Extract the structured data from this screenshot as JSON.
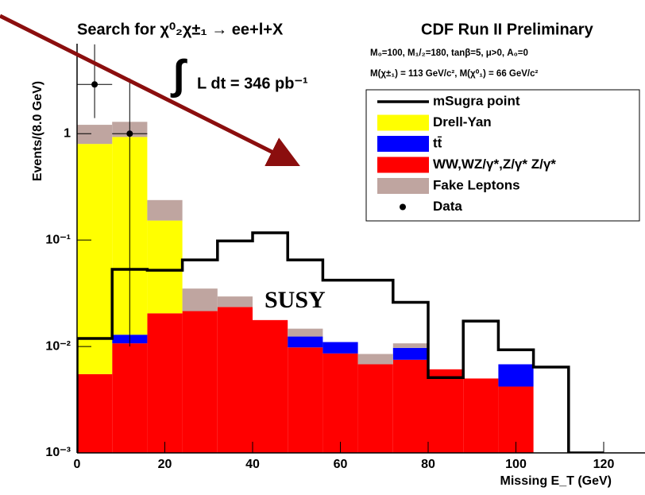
{
  "chart_data": {
    "type": "stacked_histogram",
    "title": "Search for χ⁰₂χ±₁ → ee+l+X",
    "experiment": "CDF Run II Preliminary",
    "parameters": [
      "M₀=100, M₁/₂=180, tanβ=5, μ>0, A₀=0",
      "M(χ±₁) = 113 GeV/c², M(χ⁰₁) = 66 GeV/c²"
    ],
    "lumi_symbol": "∫",
    "lumi": "L dt = 346 pb⁻¹",
    "annotation": "SUSY",
    "x_label": "Missing E_T (GeV)",
    "y_label": "Events/(8.0 GeV)",
    "bins": [
      0,
      8,
      16,
      24,
      32,
      40,
      48,
      56,
      64,
      72,
      80,
      88,
      96,
      104,
      112,
      120
    ],
    "series": [
      {
        "name": "Drell-Yan",
        "color": "#ffff00",
        "values": [
          0.795,
          0.918,
          0.132,
          0,
          0,
          0,
          0,
          0,
          0,
          0,
          0,
          0,
          0,
          0,
          0
        ]
      },
      {
        "name": "tt̄",
        "color": "#0000ff",
        "values": [
          0,
          0.0022,
          0,
          0,
          0,
          0,
          0.0026,
          0.0024,
          0,
          0.0022,
          0,
          0,
          0.0026,
          0,
          0
        ]
      },
      {
        "name": "WW,WZ/γ*,Z/γ* Z/γ*",
        "color": "#ff0000",
        "values": [
          0.0045,
          0.0097,
          0.0195,
          0.0205,
          0.0225,
          0.0167,
          0.0088,
          0.0076,
          0.0058,
          0.0065,
          0.0051,
          0.004,
          0.0032,
          0,
          0
        ]
      },
      {
        "name": "Fake Leptons",
        "color": "#bfa5a0",
        "values": [
          0.41,
          0.36,
          0.085,
          0.0135,
          0.006,
          0,
          0.0023,
          0,
          0.0017,
          0.001,
          0,
          0,
          0,
          0,
          0
        ]
      }
    ],
    "signal": {
      "name": "mSugra point",
      "color": "#000000",
      "values": [
        0.0119,
        0.053,
        0.052,
        0.065,
        0.098,
        0.117,
        0.065,
        0.042,
        0.042,
        0.026,
        0.0051,
        0.0173,
        0.0093,
        0.0064,
        0.001
      ]
    },
    "data": {
      "name": "Data",
      "color": "#000000",
      "x": [
        4,
        12
      ],
      "values": [
        2.9,
        1.0
      ],
      "xerr": [
        4,
        4
      ],
      "yerr_low": [
        1.5,
        0.99
      ],
      "yerr_high": [
        4,
        2.3
      ]
    },
    "log_y": true,
    "xlim": [
      0,
      120
    ],
    "xticks": [
      0,
      20,
      40,
      60,
      80,
      100,
      120
    ],
    "ylim": [
      0.001,
      7
    ],
    "yticks": [
      {
        "value": 0.001,
        "label": "10⁻³"
      },
      {
        "value": 0.01,
        "label": "10⁻²"
      },
      {
        "value": 0.1,
        "label": "10⁻¹"
      },
      1
    ]
  }
}
